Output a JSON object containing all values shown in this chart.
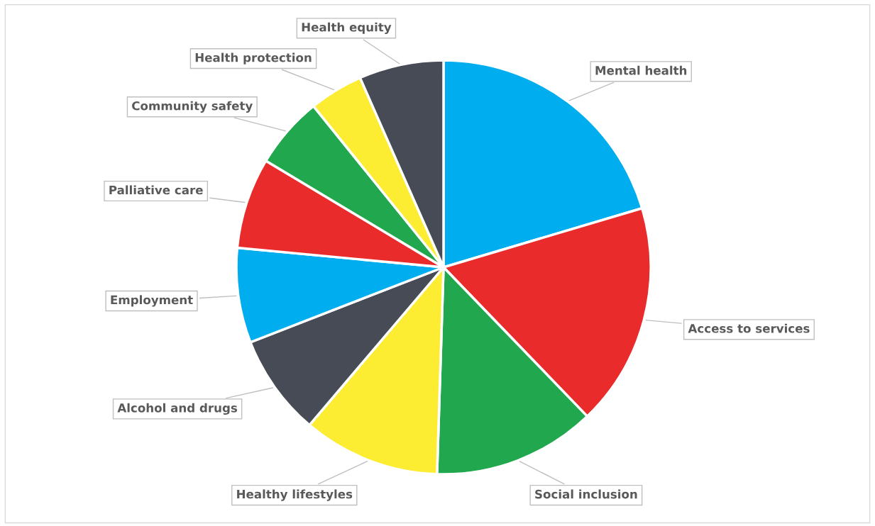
{
  "chart_data": {
    "type": "pie",
    "categories": [
      "Mental health",
      "Access to services",
      "Social inclusion",
      "Healthy lifestyles",
      "Alcohol and drugs",
      "Employment",
      "Palliative care",
      "Community safety",
      "Health protection",
      "Health equity"
    ],
    "values": [
      20.4,
      17.4,
      12.7,
      10.7,
      7.9,
      7.4,
      7.1,
      5.6,
      4.2,
      6.6
    ],
    "colors": [
      "#00aeef",
      "#e92b2b",
      "#21a84e",
      "#fcec32",
      "#474b55",
      "#00aeef",
      "#e92b2b",
      "#21a84e",
      "#fcec32",
      "#474b55"
    ],
    "legend": false
  }
}
